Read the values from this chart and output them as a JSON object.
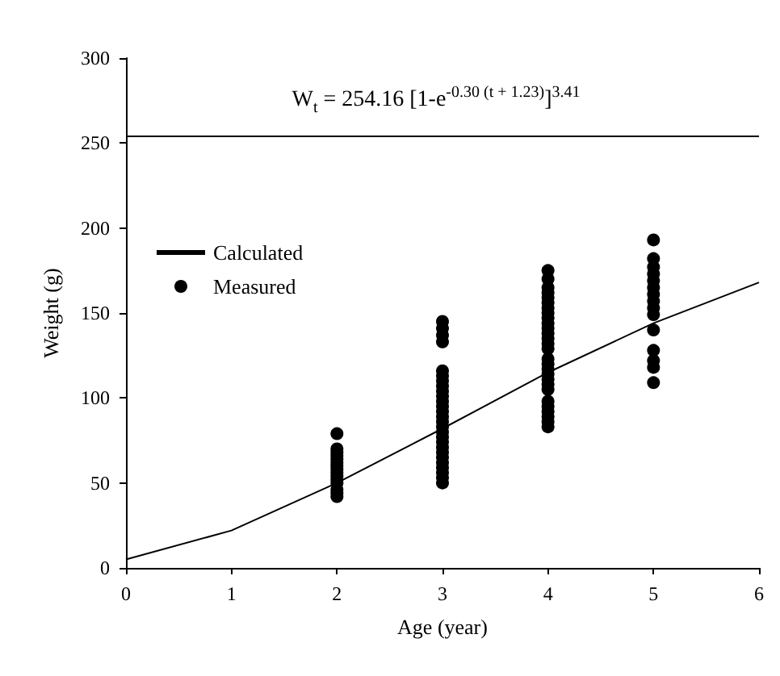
{
  "chart_data": {
    "type": "scatter",
    "xlabel": "Age (year)",
    "ylabel": "Weight (g)",
    "annotations": [
      "W$_{t}$ = 254.16 [1-e$^{-0.30 (t + 1.23)}$]$^{3.41}$"
    ],
    "xlim": [
      0,
      6
    ],
    "xticks": [
      0,
      1,
      2,
      3,
      4,
      5,
      6
    ],
    "ylim": [
      0,
      300
    ],
    "yticks": [
      0,
      50,
      100,
      150,
      200,
      250,
      300
    ],
    "grid": false,
    "legend": "top left",
    "ref_lines": [
      {
        "axis": "y",
        "value": 254.16,
        "color": "#000000"
      }
    ],
    "series": [
      {
        "name": "Calculated",
        "type": "line",
        "color": "#000000",
        "marker": "none",
        "line_style": "solid",
        "x": [
          0,
          1,
          2,
          3,
          4,
          5,
          6
        ],
        "values": [
          5,
          22,
          50,
          82,
          115,
          144,
          168
        ]
      },
      {
        "name": "Measured",
        "color": "#000000",
        "marker": "circle",
        "x": [
          2,
          2,
          2,
          2,
          2,
          2,
          2,
          2,
          2,
          2,
          2,
          2,
          2,
          2,
          2,
          3,
          3,
          3,
          3,
          3,
          3,
          3,
          3,
          3,
          3,
          3,
          3,
          3,
          3,
          3,
          3,
          3,
          3,
          3,
          3,
          3,
          3,
          3,
          3,
          3,
          3,
          3,
          4,
          4,
          4,
          4,
          4,
          4,
          4,
          4,
          4,
          4,
          4,
          4,
          4,
          4,
          4,
          4,
          4,
          4,
          4,
          4,
          4,
          4,
          4,
          4,
          4,
          4,
          4,
          4,
          5,
          5,
          5,
          5,
          5,
          5,
          5,
          5,
          5,
          5,
          5,
          5,
          5,
          5,
          5
        ],
        "values": [
          42,
          44,
          46,
          50,
          52,
          54,
          56,
          58,
          60,
          62,
          64,
          66,
          68,
          70,
          79,
          50,
          53,
          56,
          59,
          62,
          65,
          68,
          71,
          74,
          77,
          80,
          83,
          86,
          89,
          92,
          95,
          98,
          101,
          104,
          107,
          110,
          113,
          116,
          133,
          137,
          141,
          145,
          83,
          86,
          89,
          92,
          95,
          98,
          105,
          108,
          111,
          114,
          117,
          120,
          123,
          129,
          132,
          135,
          138,
          141,
          144,
          147,
          150,
          153,
          156,
          159,
          162,
          165,
          170,
          175,
          109,
          118,
          122,
          128,
          140,
          149,
          153,
          157,
          161,
          165,
          169,
          173,
          177,
          182,
          193
        ]
      }
    ]
  }
}
